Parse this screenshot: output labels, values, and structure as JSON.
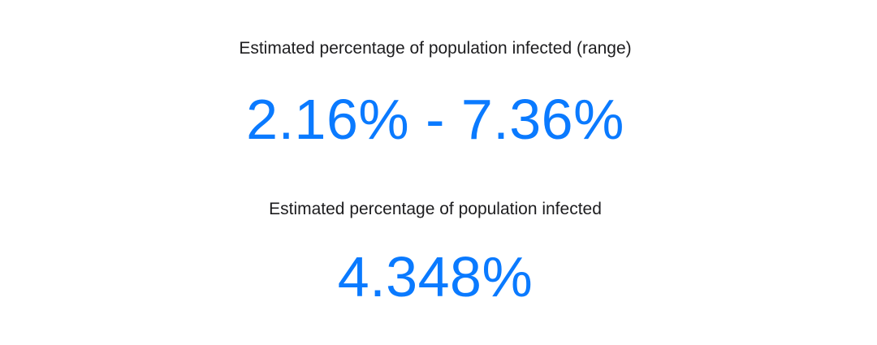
{
  "theme": {
    "accent_color": "#0a7aff",
    "label_color": "#1d1d1f",
    "background": "#ffffff"
  },
  "stats": [
    {
      "label": "Estimated percentage of population infected (range)",
      "value": "2.16% - 7.36%"
    },
    {
      "label": "Estimated percentage of population infected",
      "value": "4.348%"
    }
  ]
}
